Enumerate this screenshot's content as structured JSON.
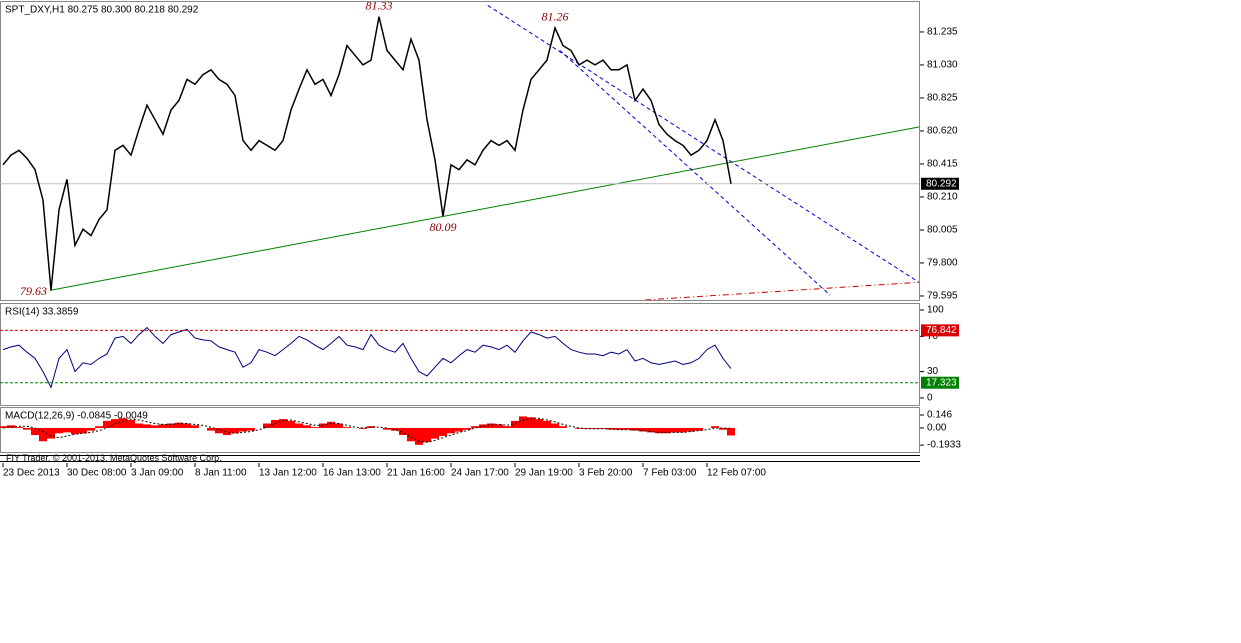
{
  "chart_data": [
    {
      "type": "line",
      "title": "SPT_DXY,H1  80.275 80.300 80.218 80.292",
      "x": [
        0,
        1,
        2,
        3,
        4,
        5,
        6,
        7,
        8,
        9,
        10,
        11,
        12,
        13,
        14,
        15,
        16,
        17,
        18,
        19,
        20,
        21,
        22,
        23,
        24,
        25,
        26,
        27,
        28,
        29,
        30,
        31,
        32,
        33,
        34,
        35,
        36,
        37,
        38,
        39,
        40,
        41,
        42,
        43,
        44,
        45,
        46,
        47,
        48,
        49,
        50,
        51,
        52,
        53,
        54,
        55,
        56,
        57,
        58,
        59,
        60,
        61,
        62,
        63,
        64,
        65,
        66,
        67,
        68,
        69,
        70,
        71,
        72,
        73,
        74,
        75,
        76,
        77,
        78,
        79,
        80,
        81,
        82,
        83,
        84,
        85,
        86,
        87,
        88,
        89,
        90,
        91
      ],
      "xlim": [
        -0.375,
        114.5
      ],
      "xticks": [
        {
          "value": 0,
          "label": "23 Dec 2013"
        },
        {
          "value": 8,
          "label": "30 Dec 08:00"
        },
        {
          "value": 16,
          "label": "3 Jan 09:00"
        },
        {
          "value": 24,
          "label": "8 Jan 11:00"
        },
        {
          "value": 32,
          "label": "13 Jan 12:00"
        },
        {
          "value": 40,
          "label": "16 Jan 13:00"
        },
        {
          "value": 48,
          "label": "21 Jan 16:00"
        },
        {
          "value": 56,
          "label": "24 Jan 17:00"
        },
        {
          "value": 64,
          "label": "29 Jan 19:00"
        },
        {
          "value": 72,
          "label": "3 Feb 20:00"
        },
        {
          "value": 80,
          "label": "7 Feb 03:00"
        },
        {
          "value": 88,
          "label": "12 Feb 07:00"
        }
      ],
      "series": [
        {
          "color": "#000000",
          "values": [
            80.41,
            80.47,
            80.5,
            80.45,
            80.38,
            80.19,
            79.63,
            80.13,
            80.32,
            79.91,
            80.01,
            79.97,
            80.07,
            80.13,
            80.5,
            80.53,
            80.47,
            80.63,
            80.78,
            80.69,
            80.6,
            80.75,
            80.81,
            80.94,
            80.91,
            80.97,
            81.0,
            80.94,
            80.91,
            80.84,
            80.56,
            80.5,
            80.56,
            80.53,
            80.5,
            80.56,
            80.75,
            80.88,
            81.0,
            80.91,
            80.94,
            80.84,
            80.97,
            81.15,
            81.09,
            81.03,
            81.06,
            81.33,
            81.12,
            81.06,
            81.0,
            81.19,
            81.06,
            80.69,
            80.44,
            80.09,
            80.41,
            80.38,
            80.44,
            80.41,
            80.5,
            80.56,
            80.53,
            80.56,
            80.5,
            80.75,
            80.94,
            81.0,
            81.06,
            81.26,
            81.15,
            81.12,
            81.03,
            81.06,
            81.03,
            81.06,
            81.0,
            81.0,
            81.03,
            80.81,
            80.88,
            80.81,
            80.66,
            80.6,
            80.56,
            80.53,
            80.47,
            80.5,
            80.56,
            80.69,
            80.56,
            80.292
          ]
        }
      ],
      "ylim": [
        79.57,
        81.421
      ],
      "yticks": [
        81.235,
        {
          "value": 81.03,
          "label": "81.030"
        },
        80.825,
        {
          "value": 80.62,
          "label": "80.620"
        },
        80.415,
        {
          "value": 80.21,
          "label": "80.210"
        },
        80.005,
        {
          "value": 79.8,
          "label": "79.800"
        },
        79.595
      ],
      "last_price": 80.292,
      "annotations": [
        {
          "x": 47,
          "value": 81.33,
          "position": "above"
        },
        {
          "x": 69,
          "value": 81.26,
          "position": "above"
        },
        {
          "x": 55,
          "value": 80.09,
          "position": "below"
        },
        {
          "x": 6,
          "value": 79.63,
          "position": "left"
        }
      ],
      "lines": [
        {
          "color": "#008000",
          "style": "solid",
          "x": [
            5.875,
            114.5
          ],
          "y": [
            79.63,
            80.645
          ]
        },
        {
          "color": "#0000cc",
          "style": "dashed",
          "x": [
            60.6,
            114.5
          ],
          "y": [
            81.4,
            79.68
          ]
        },
        {
          "color": "#0000cc",
          "style": "dashed",
          "x": [
            69.6,
            103.4
          ],
          "y": [
            81.12,
            79.6
          ]
        },
        {
          "color": "#cc0000",
          "style": "dashdot",
          "x": [
            80.25,
            114.5
          ],
          "y": [
            79.57,
            79.68
          ]
        }
      ]
    },
    {
      "type": "line",
      "title": "RSI(14) 33.3859",
      "series": [
        {
          "color": "#000080",
          "values": [
            55,
            58,
            60,
            52,
            45,
            30,
            12,
            45,
            55,
            30,
            40,
            38,
            45,
            50,
            68,
            70,
            62,
            72,
            80,
            70,
            62,
            72,
            75,
            78,
            68,
            66,
            65,
            58,
            55,
            52,
            35,
            40,
            55,
            52,
            48,
            55,
            62,
            70,
            66,
            60,
            55,
            62,
            70,
            60,
            58,
            55,
            72,
            60,
            55,
            52,
            62,
            45,
            30,
            25,
            35,
            45,
            40,
            48,
            55,
            52,
            60,
            58,
            55,
            60,
            52,
            65,
            75,
            72,
            68,
            70,
            62,
            55,
            52,
            50,
            50,
            48,
            52,
            50,
            55,
            42,
            45,
            40,
            38,
            40,
            42,
            38,
            40,
            45,
            55,
            60,
            45,
            33.3859
          ]
        }
      ],
      "ylim": [
        -8,
        106.8
      ],
      "yticks": [
        100,
        70,
        30,
        0
      ],
      "levels": [
        {
          "value": 76.842,
          "color": "#dd0000"
        },
        {
          "value": 17.323,
          "color": "#008000"
        }
      ]
    },
    {
      "type": "macd",
      "title": "MACD(12,26,9) -0.0845 -0.0049",
      "series": [
        {
          "color": "#ff0000",
          "style": "histogram",
          "values": [
            0.02,
            0.03,
            0.01,
            -0.02,
            -0.08,
            -0.15,
            -0.12,
            -0.06,
            -0.05,
            -0.07,
            -0.06,
            -0.03,
            0.02,
            0.08,
            0.1,
            0.11,
            0.09,
            0.05,
            0.04,
            0.03,
            0.04,
            0.05,
            0.06,
            0.05,
            0.03,
            0.0,
            -0.03,
            -0.06,
            -0.08,
            -0.06,
            -0.04,
            -0.03,
            0.0,
            0.05,
            0.09,
            0.1,
            0.08,
            0.05,
            0.03,
            0.01,
            0.05,
            0.07,
            0.05,
            0.01,
            0.0,
            -0.01,
            0.02,
            0.0,
            -0.02,
            -0.03,
            -0.08,
            -0.15,
            -0.19,
            -0.16,
            -0.12,
            -0.09,
            -0.06,
            -0.04,
            -0.02,
            0.02,
            0.04,
            0.05,
            0.04,
            0.02,
            0.08,
            0.13,
            0.12,
            0.1,
            0.08,
            0.05,
            0.02,
            0.0,
            -0.01,
            -0.01,
            -0.01,
            -0.01,
            -0.02,
            -0.02,
            -0.02,
            -0.03,
            -0.04,
            -0.05,
            -0.06,
            -0.06,
            -0.05,
            -0.05,
            -0.04,
            -0.03,
            0.0,
            0.02,
            -0.02,
            -0.0845
          ]
        },
        {
          "color": "#000000",
          "style": "dotted",
          "values": [
            0.0,
            0.01,
            0.02,
            0.02,
            0.0,
            -0.04,
            -0.09,
            -0.11,
            -0.09,
            -0.07,
            -0.06,
            -0.05,
            -0.03,
            0.0,
            0.05,
            0.08,
            0.1,
            0.09,
            0.07,
            0.05,
            0.04,
            0.04,
            0.05,
            0.05,
            0.04,
            0.03,
            0.01,
            -0.02,
            -0.05,
            -0.06,
            -0.05,
            -0.04,
            -0.02,
            0.01,
            0.05,
            0.08,
            0.09,
            0.07,
            0.05,
            0.03,
            0.03,
            0.05,
            0.05,
            0.03,
            0.01,
            0.0,
            0.01,
            0.01,
            0.0,
            -0.02,
            -0.05,
            -0.1,
            -0.15,
            -0.16,
            -0.14,
            -0.11,
            -0.08,
            -0.05,
            -0.03,
            0.0,
            0.02,
            0.04,
            0.04,
            0.03,
            0.05,
            0.09,
            0.11,
            0.11,
            0.09,
            0.07,
            0.04,
            0.02,
            0.0,
            -0.01,
            -0.01,
            -0.01,
            -0.01,
            -0.02,
            -0.02,
            -0.02,
            -0.03,
            -0.04,
            -0.05,
            -0.05,
            -0.05,
            -0.05,
            -0.04,
            -0.03,
            -0.02,
            0.0,
            0.0,
            -0.0049
          ]
        }
      ],
      "ylim": [
        -0.271,
        0.225
      ],
      "yticks": [
        0.146,
        {
          "value": 0,
          "label": "0.00"
        },
        -0.1933
      ]
    }
  ],
  "footer": "FIY Trader, © 2001-2013, MetaQuotes Software Corp."
}
